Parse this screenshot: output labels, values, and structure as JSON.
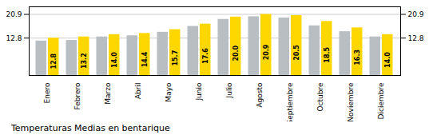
{
  "chart_data": {
    "type": "bar",
    "title": "Temperaturas Medias en bentarique",
    "categories": [
      "Enero",
      "Febrero",
      "Marzo",
      "Abril",
      "Mayo",
      "Junio",
      "Julio",
      "Agosto",
      "Septiembre",
      "Octubre",
      "Noviembre",
      "Diciembre"
    ],
    "series": [
      {
        "color": "#B8BEC2",
        "values": [
          11.8,
          12.0,
          13.2,
          13.6,
          14.8,
          16.8,
          19.2,
          20.1,
          19.7,
          17.0,
          15.0,
          13.2
        ]
      },
      {
        "color": "#FFD700",
        "values": [
          12.8,
          13.2,
          14.0,
          14.4,
          15.7,
          17.6,
          20.0,
          20.9,
          20.5,
          18.5,
          16.3,
          14.0
        ],
        "data_labels": true,
        "value_labels": [
          "12.8",
          "13.2",
          "14.0",
          "14.4",
          "15.7",
          "17.6",
          "20.0",
          "20.9",
          "20.5",
          "18.5",
          "16.3",
          "14.0"
        ]
      }
    ],
    "ylim": [
      0,
      23.5
    ],
    "yticks": [
      12.8,
      20.9
    ],
    "grid": true
  }
}
